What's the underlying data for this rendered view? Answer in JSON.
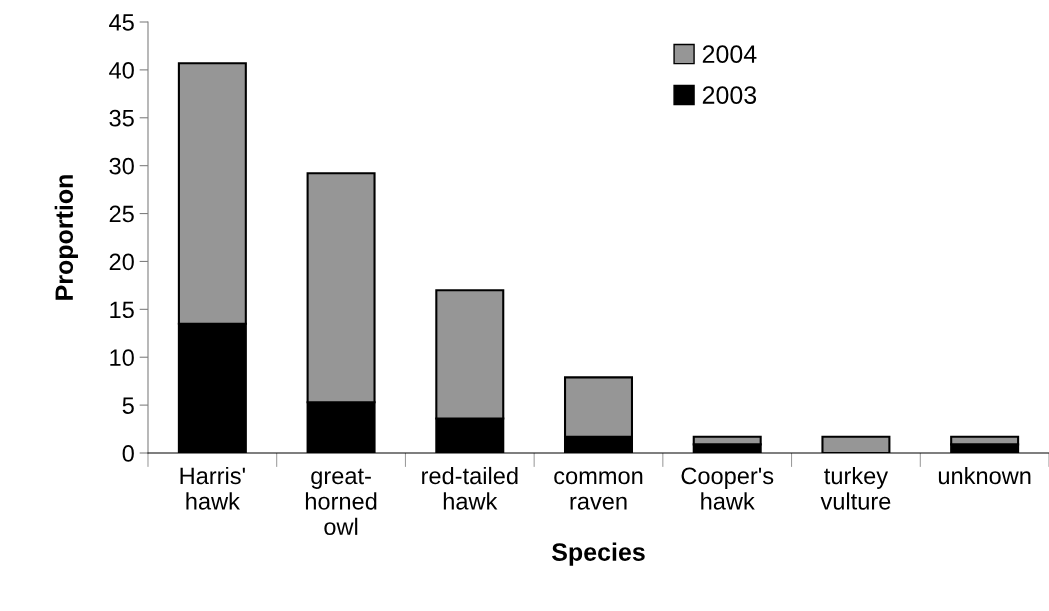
{
  "chart_data": {
    "type": "bar",
    "stacked": true,
    "xlabel": "Species",
    "ylabel": "Proportion",
    "categories": [
      "Harris'\nhawk",
      "great-\nhorned\nowl",
      "red-tailed\nhawk",
      "common\nraven",
      "Cooper's\nhawk",
      "turkey\nvulture",
      "unknown"
    ],
    "series": [
      {
        "name": "2003",
        "color": "#000000",
        "values": [
          13.5,
          5.3,
          3.6,
          1.7,
          0.9,
          0,
          0.9
        ]
      },
      {
        "name": "2004",
        "color": "#969696",
        "values": [
          27.2,
          23.9,
          13.4,
          6.2,
          0.8,
          1.7,
          0.8
        ]
      }
    ],
    "ylim": [
      0,
      45
    ],
    "yticks": [
      0,
      5,
      10,
      15,
      20,
      25,
      30,
      35,
      40,
      45
    ],
    "grid": false,
    "legend": "top"
  }
}
